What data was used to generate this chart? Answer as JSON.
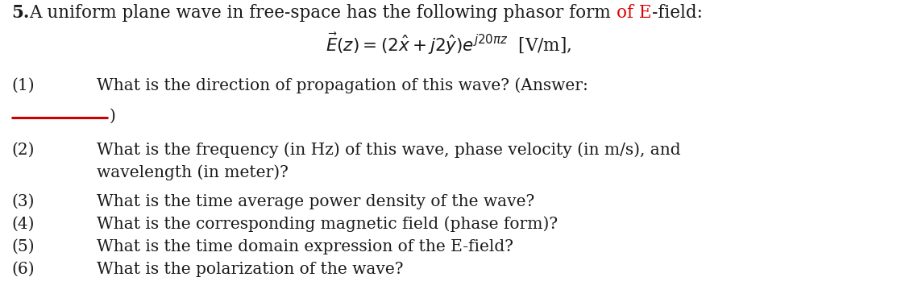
{
  "background_color": "#ffffff",
  "text_color": "#1a1a1a",
  "red_color": "#dd0000",
  "underline_color": "#cc0000",
  "font_family": "DejaVu Serif",
  "fs_title": 15.5,
  "fs_eq": 15.5,
  "fs_body": 14.5,
  "fig_w": 11.13,
  "fig_h": 3.75,
  "dpi": 100,
  "title_bold_part": "5.",
  "title_normal_part": "A uniform plane wave in free-space has the following phasor form ",
  "title_red_part": "of E",
  "title_end_part": "-field:",
  "eq_text": "$\\vec{E}(z) = (2\\hat{x} + j2\\hat{y})e^{j20\\pi z}$  [V/m],",
  "item1_num": "(1)",
  "item1_text": "What is the direction of propagation of this wave? (Answer:",
  "item1_cont": ")",
  "item2_num": "(2)",
  "item2_text": "What is the frequency (in Hz) of this wave, phase velocity (in m/s), and",
  "item2_cont": "wavelength (in meter)?",
  "item3_num": "(3)",
  "item3_text": "What is the time average power density of the wave?",
  "item4_num": "(4)",
  "item4_text": "What is the corresponding magnetic field (phase form)?",
  "item5_num": "(5)",
  "item5_text": "What is the time domain expression of the E-field?",
  "item6_num": "(6)",
  "item6_text": "What is the polarization of the wave?"
}
